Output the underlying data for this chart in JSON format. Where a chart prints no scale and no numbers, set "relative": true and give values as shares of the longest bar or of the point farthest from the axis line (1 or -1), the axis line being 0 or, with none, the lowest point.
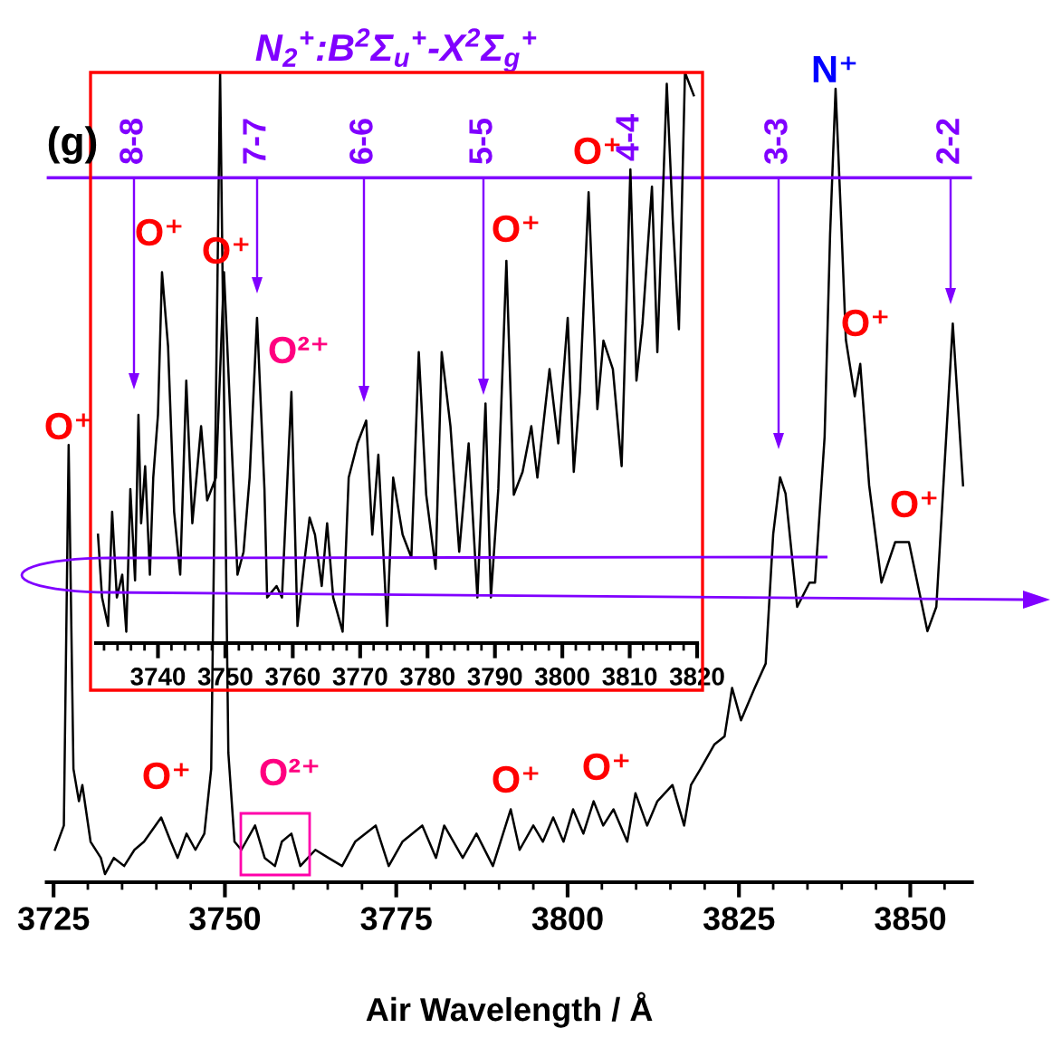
{
  "chart_data": [
    {
      "type": "line",
      "relative": true,
      "xlabel": "Air Wavelength / Å",
      "xlim": [
        3724,
        3859
      ],
      "xticks": [
        3725,
        {
          "value": 3730,
          "label": null
        },
        {
          "value": 3735,
          "label": null
        },
        {
          "value": 3740,
          "label": null
        },
        {
          "value": 3745,
          "label": null
        },
        3750,
        {
          "value": 3755,
          "label": null
        },
        {
          "value": 3760,
          "label": null
        },
        {
          "value": 3765,
          "label": null
        },
        {
          "value": 3770,
          "label": null
        },
        3775,
        {
          "value": 3780,
          "label": null
        },
        {
          "value": 3785,
          "label": null
        },
        {
          "value": 3790,
          "label": null
        },
        {
          "value": 3795,
          "label": null
        },
        3800,
        {
          "value": 3805,
          "label": null
        },
        {
          "value": 3810,
          "label": null
        },
        {
          "value": 3815,
          "label": null
        },
        {
          "value": 3820,
          "label": null
        },
        3825,
        {
          "value": 3830,
          "label": null
        },
        {
          "value": 3835,
          "label": null
        },
        {
          "value": 3840,
          "label": null
        },
        {
          "value": 3845,
          "label": null
        },
        3850,
        {
          "value": 3855,
          "label": null
        }
      ],
      "tick_labels": "x",
      "grid": false,
      "annotations": [
        "(g)",
        "O⁺",
        "O⁺",
        "O²⁺",
        "O⁺",
        "O⁺",
        "N⁺",
        "O⁺",
        "O⁺",
        "3-3",
        "2-2"
      ],
      "ref_lines": [
        {
          "axis": "y",
          "value": 0.87,
          "color": "#8000ff"
        }
      ],
      "series": [
        {
          "color": "#000000",
          "x": [
            3725.2,
            3726.5,
            3727.2,
            3727.9,
            3728.7,
            3729.2,
            3730.4,
            3731.9,
            3732.5,
            3733.8,
            3735.3,
            3736.8,
            3738.2,
            3740.7,
            3742.1,
            3743.1,
            3744.4,
            3745.7,
            3747.0,
            3748.0,
            3749.3,
            3750.5,
            3751.4,
            3752.4,
            3754.4,
            3755.8,
            3757.3,
            3758.3,
            3759.7,
            3761.0,
            3763.2,
            3765.1,
            3767.1,
            3769.0,
            3772.0,
            3773.9,
            3775.9,
            3778.8,
            3780.8,
            3782.0,
            3784.7,
            3786.7,
            3789.1,
            3791.7,
            3793.0,
            3795.0,
            3796.4,
            3797.9,
            3799.4,
            3800.8,
            3802.3,
            3803.8,
            3805.2,
            3806.7,
            3808.7,
            3809.9,
            3811.6,
            3813.1,
            3815.3,
            3817.0,
            3818.0,
            3819.4,
            3821.4,
            3822.9,
            3824.0,
            3825.3,
            3827.3,
            3828.9,
            3830.0,
            3831.0,
            3831.8,
            3833.5,
            3835.3,
            3836.1,
            3837.5,
            3838.3,
            3839.1,
            3839.9,
            3840.6,
            3841.9,
            3842.7,
            3844.0,
            3845.8,
            3847.8,
            3849.8,
            3852.5,
            3853.8,
            3856.2,
            3857.7
          ],
          "values": [
            0.04,
            0.07,
            0.54,
            0.14,
            0.1,
            0.12,
            0.05,
            0.03,
            0.01,
            0.03,
            0.02,
            0.04,
            0.05,
            0.08,
            0.05,
            0.03,
            0.06,
            0.04,
            0.06,
            0.14,
            1.0,
            0.16,
            0.05,
            0.04,
            0.07,
            0.03,
            0.02,
            0.05,
            0.06,
            0.02,
            0.04,
            0.03,
            0.02,
            0.05,
            0.07,
            0.02,
            0.05,
            0.07,
            0.03,
            0.07,
            0.03,
            0.06,
            0.02,
            0.09,
            0.04,
            0.07,
            0.05,
            0.08,
            0.05,
            0.09,
            0.06,
            0.1,
            0.07,
            0.09,
            0.05,
            0.11,
            0.07,
            0.1,
            0.12,
            0.07,
            0.12,
            0.14,
            0.17,
            0.18,
            0.24,
            0.2,
            0.24,
            0.27,
            0.43,
            0.5,
            0.48,
            0.34,
            0.37,
            0.37,
            0.55,
            0.8,
            0.98,
            0.82,
            0.67,
            0.6,
            0.64,
            0.49,
            0.37,
            0.42,
            0.42,
            0.31,
            0.34,
            0.69,
            0.49
          ]
        }
      ]
    },
    {
      "type": "line",
      "relative": true,
      "title": "N$_{2}$$^{+}$:B$^{2}$Σ$_{u}$$^{+}$-X$^{2}$Σ$_{g}$$^{+}$",
      "xlim": [
        3730.8,
        3820
      ],
      "xticks": [
        {
          "value": 3732,
          "label": null
        },
        {
          "value": 3734,
          "label": null
        },
        {
          "value": 3736,
          "label": null
        },
        {
          "value": 3738,
          "label": null
        },
        3740,
        {
          "value": 3742,
          "label": null
        },
        {
          "value": 3744,
          "label": null
        },
        {
          "value": 3746,
          "label": null
        },
        {
          "value": 3748,
          "label": null
        },
        3750,
        {
          "value": 3752,
          "label": null
        },
        {
          "value": 3754,
          "label": null
        },
        {
          "value": 3756,
          "label": null
        },
        {
          "value": 3758,
          "label": null
        },
        3760,
        {
          "value": 3762,
          "label": null
        },
        {
          "value": 3764,
          "label": null
        },
        {
          "value": 3766,
          "label": null
        },
        {
          "value": 3768,
          "label": null
        },
        3770,
        {
          "value": 3772,
          "label": null
        },
        {
          "value": 3774,
          "label": null
        },
        {
          "value": 3776,
          "label": null
        },
        {
          "value": 3778,
          "label": null
        },
        3780,
        {
          "value": 3782,
          "label": null
        },
        {
          "value": 3784,
          "label": null
        },
        {
          "value": 3786,
          "label": null
        },
        {
          "value": 3788,
          "label": null
        },
        3790,
        {
          "value": 3792,
          "label": null
        },
        {
          "value": 3794,
          "label": null
        },
        {
          "value": 3796,
          "label": null
        },
        {
          "value": 3798,
          "label": null
        },
        3800,
        {
          "value": 3802,
          "label": null
        },
        {
          "value": 3804,
          "label": null
        },
        {
          "value": 3806,
          "label": null
        },
        {
          "value": 3808,
          "label": null
        },
        3810,
        {
          "value": 3812,
          "label": null
        },
        {
          "value": 3814,
          "label": null
        },
        {
          "value": 3816,
          "label": null
        },
        {
          "value": 3818,
          "label": null
        },
        3820
      ],
      "tick_labels": "x",
      "grid": false,
      "annotations": [
        "O⁺",
        "O⁺",
        "O²⁺",
        "O⁺",
        "O⁺",
        "8-8",
        "7-7",
        "6-6",
        "5-5",
        "4-4"
      ],
      "series": [
        {
          "color": "#000000",
          "x": [
            3731.1,
            3731.7,
            3732.6,
            3733.2,
            3733.9,
            3734.7,
            3735.3,
            3735.9,
            3736.6,
            3737.1,
            3737.5,
            3738.1,
            3738.8,
            3739.3,
            3740.0,
            3740.6,
            3741.5,
            3742.4,
            3743.3,
            3744.2,
            3745.1,
            3746.4,
            3747.3,
            3748.6,
            3749.8,
            3751.0,
            3751.8,
            3752.7,
            3753.6,
            3754.7,
            3755.8,
            3756.2,
            3757.6,
            3758.4,
            3759.8,
            3760.7,
            3761.6,
            3762.5,
            3763.3,
            3764.3,
            3765.1,
            3766.0,
            3767.4,
            3768.3,
            3769.6,
            3770.9,
            3771.8,
            3772.7,
            3774.0,
            3774.9,
            3776.3,
            3777.6,
            3778.7,
            3779.8,
            3781.2,
            3782.1,
            3783.4,
            3784.7,
            3786.1,
            3787.4,
            3788.6,
            3789.4,
            3790.5,
            3791.7,
            3792.8,
            3794.1,
            3795.4,
            3796.3,
            3798.1,
            3799.4,
            3800.8,
            3801.7,
            3802.6,
            3803.9,
            3805.2,
            3806.1,
            3807.5,
            3808.8,
            3810.1,
            3811.0,
            3811.9,
            3813.3,
            3814.1,
            3815.5,
            3816.4,
            3817.3,
            3818.2,
            3819.5
          ],
          "values": [
            0.19,
            0.08,
            0.03,
            0.23,
            0.08,
            0.12,
            0.02,
            0.27,
            0.11,
            0.4,
            0.21,
            0.31,
            0.12,
            0.29,
            0.4,
            0.65,
            0.52,
            0.23,
            0.12,
            0.46,
            0.21,
            0.38,
            0.25,
            0.29,
            0.65,
            0.33,
            0.12,
            0.16,
            0.29,
            0.57,
            0.27,
            0.08,
            0.1,
            0.08,
            0.44,
            0.03,
            0.13,
            0.22,
            0.19,
            0.1,
            0.21,
            0.08,
            0.02,
            0.29,
            0.35,
            0.39,
            0.19,
            0.33,
            0.03,
            0.29,
            0.19,
            0.15,
            0.51,
            0.26,
            0.13,
            0.51,
            0.38,
            0.16,
            0.35,
            0.08,
            0.42,
            0.08,
            0.27,
            0.67,
            0.26,
            0.3,
            0.38,
            0.29,
            0.48,
            0.35,
            0.57,
            0.3,
            0.44,
            0.79,
            0.41,
            0.53,
            0.48,
            0.31,
            0.83,
            0.46,
            0.56,
            0.8,
            0.51,
            0.98,
            0.74,
            0.55,
            1.0,
            0.96
          ]
        }
      ]
    }
  ]
}
